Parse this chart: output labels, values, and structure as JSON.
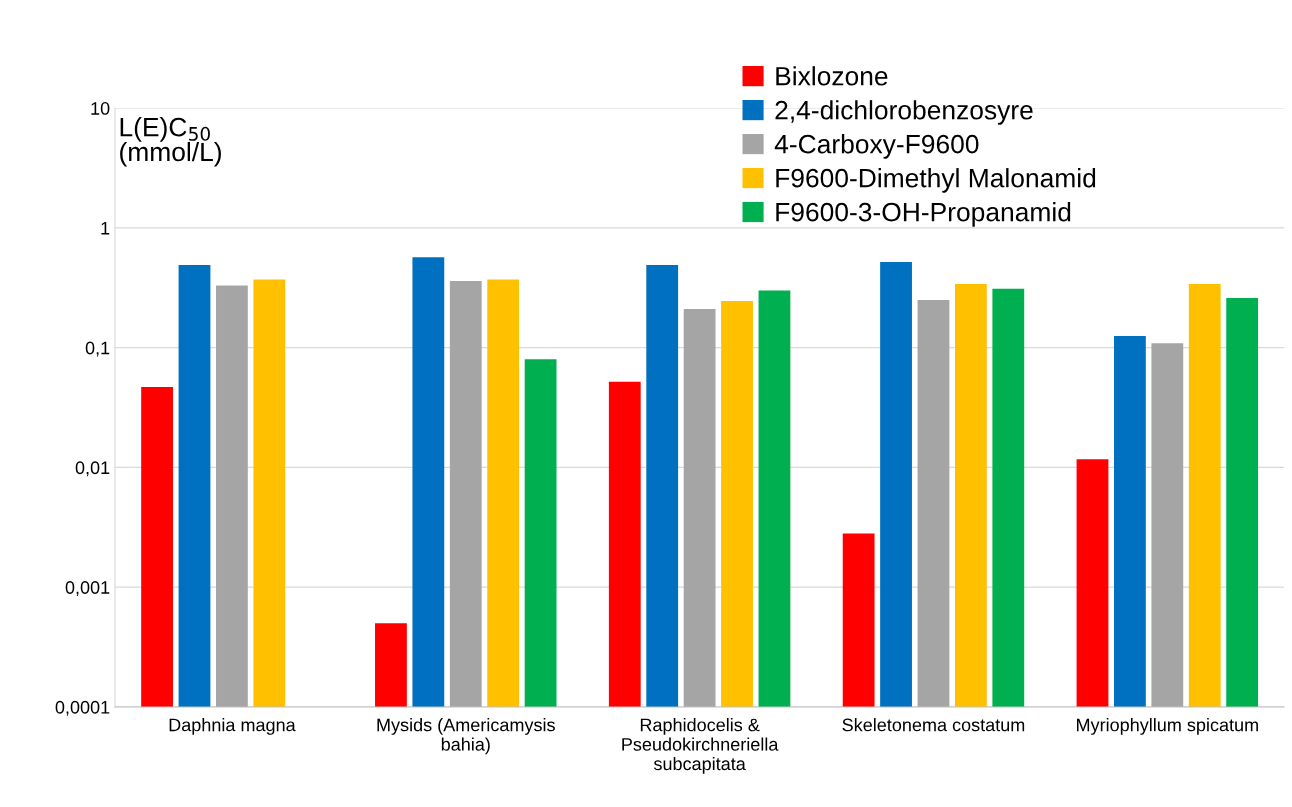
{
  "chart_data": {
    "type": "bar",
    "ylabel": "L(E)C$_{50}$ (mmol/L)",
    "categories": [
      "Daphnia magna",
      "Mysids (Americamysis bahia)",
      "Raphidocelis & Pseudokirchneriella subcapitata",
      "Skeletonema costatum",
      "Myriophyllum spicatum"
    ],
    "series": [
      {
        "name": "Bixlozone",
        "color": "#ff0000",
        "values": [
          0.047,
          0.0005,
          0.052,
          0.0028,
          0.0117
        ]
      },
      {
        "name": "2,4-dichlorobenzosyre",
        "color": "#0070c0",
        "values": [
          0.49,
          0.57,
          0.49,
          0.52,
          0.125
        ]
      },
      {
        "name": "4-Carboxy-F9600",
        "color": "#a5a5a5",
        "values": [
          0.33,
          0.36,
          0.21,
          0.25,
          0.109
        ]
      },
      {
        "name": "F9600-Dimethyl Malonamid",
        "color": "#ffc000",
        "values": [
          0.37,
          0.37,
          0.245,
          0.34,
          0.34
        ]
      },
      {
        "name": "F9600-3-OH-Propanamid",
        "color": "#00b050",
        "values": [
          null,
          0.08,
          0.3,
          0.31,
          0.26
        ]
      }
    ],
    "log": "y",
    "ylim": [
      0.0001,
      10
    ],
    "yticks": [
      {
        "value": 0.0001,
        "label": "0,0001"
      },
      {
        "value": 0.001,
        "label": "0,001"
      },
      {
        "value": 0.01,
        "label": "0,01"
      },
      {
        "value": 0.1,
        "label": "0,1"
      },
      {
        "value": 1,
        "label": "1"
      },
      {
        "value": 10,
        "label": "10"
      }
    ],
    "grid": "y",
    "legend": "top right"
  }
}
